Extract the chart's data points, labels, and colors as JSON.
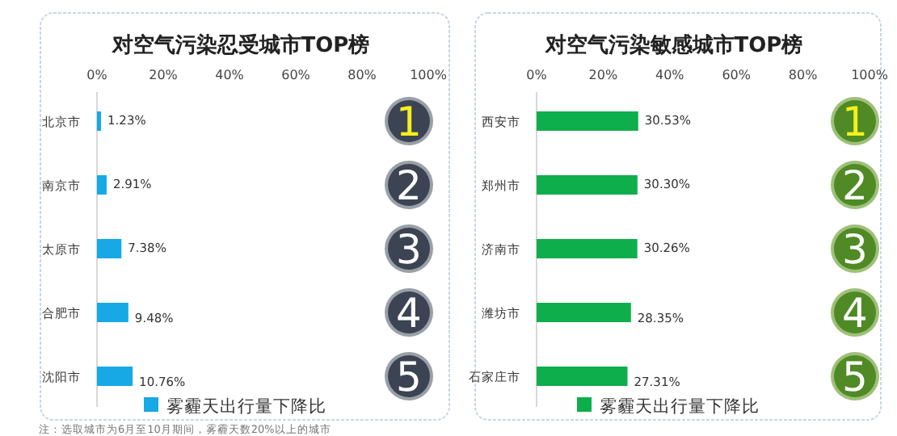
{
  "chart_data": [
    {
      "type": "bar",
      "orientation": "horizontal",
      "title": "对空气污染忍受城市TOP榜",
      "categories": [
        "北京市",
        "南京市",
        "太原市",
        "合肥市",
        "沈阳市"
      ],
      "series": [
        {
          "name": "雾霾天出行量下降比",
          "color": "#16a9e6",
          "values": [
            1.23,
            2.91,
            7.38,
            9.48,
            10.76
          ],
          "value_labels": [
            "1.23%",
            "2.91%",
            "7.38%",
            "9.48%",
            "10.76%"
          ]
        }
      ],
      "xlim": [
        0,
        100
      ],
      "xticks": [
        {
          "value": 0,
          "label": "0%"
        },
        {
          "value": 20,
          "label": "20%"
        },
        {
          "value": 40,
          "label": "40%"
        },
        {
          "value": 60,
          "label": "60%"
        },
        {
          "value": 80,
          "label": "80%"
        },
        {
          "value": 100,
          "label": "100%"
        }
      ],
      "legend": "bottom",
      "grid": false,
      "annotations": [
        {
          "text": "1",
          "y": "北京市"
        },
        {
          "text": "2",
          "y": "南京市"
        },
        {
          "text": "3",
          "y": "太原市"
        },
        {
          "text": "4",
          "y": "合肥市"
        },
        {
          "text": "5",
          "y": "沈阳市"
        },
        "注：选取城市为6月至10月期间，雾霾天数20%以上的城市"
      ]
    },
    {
      "type": "bar",
      "orientation": "horizontal",
      "title": "对空气污染敏感城市TOP榜",
      "categories": [
        "西安市",
        "郑州市",
        "济南市",
        "潍坊市",
        "石家庄市"
      ],
      "series": [
        {
          "name": "雾霾天出行量下降比",
          "color": "#0fae4c",
          "values": [
            30.53,
            30.3,
            30.26,
            28.35,
            27.31
          ],
          "value_labels": [
            "30.53%",
            "30.30%",
            "30.26%",
            "28.35%",
            "27.31%"
          ]
        }
      ],
      "xlim": [
        0,
        100
      ],
      "xticks": [
        {
          "value": 0,
          "label": "0%"
        },
        {
          "value": 20,
          "label": "20%"
        },
        {
          "value": 40,
          "label": "40%"
        },
        {
          "value": 60,
          "label": "60%"
        },
        {
          "value": 80,
          "label": "80%"
        },
        {
          "value": 100,
          "label": "100%"
        }
      ],
      "legend": "bottom",
      "grid": false,
      "annotations": [
        {
          "text": "1",
          "y": "西安市"
        },
        {
          "text": "2",
          "y": "郑州市"
        },
        {
          "text": "3",
          "y": "济南市"
        },
        {
          "text": "4",
          "y": "潍坊市"
        },
        {
          "text": "5",
          "y": "石家庄市"
        }
      ]
    }
  ]
}
